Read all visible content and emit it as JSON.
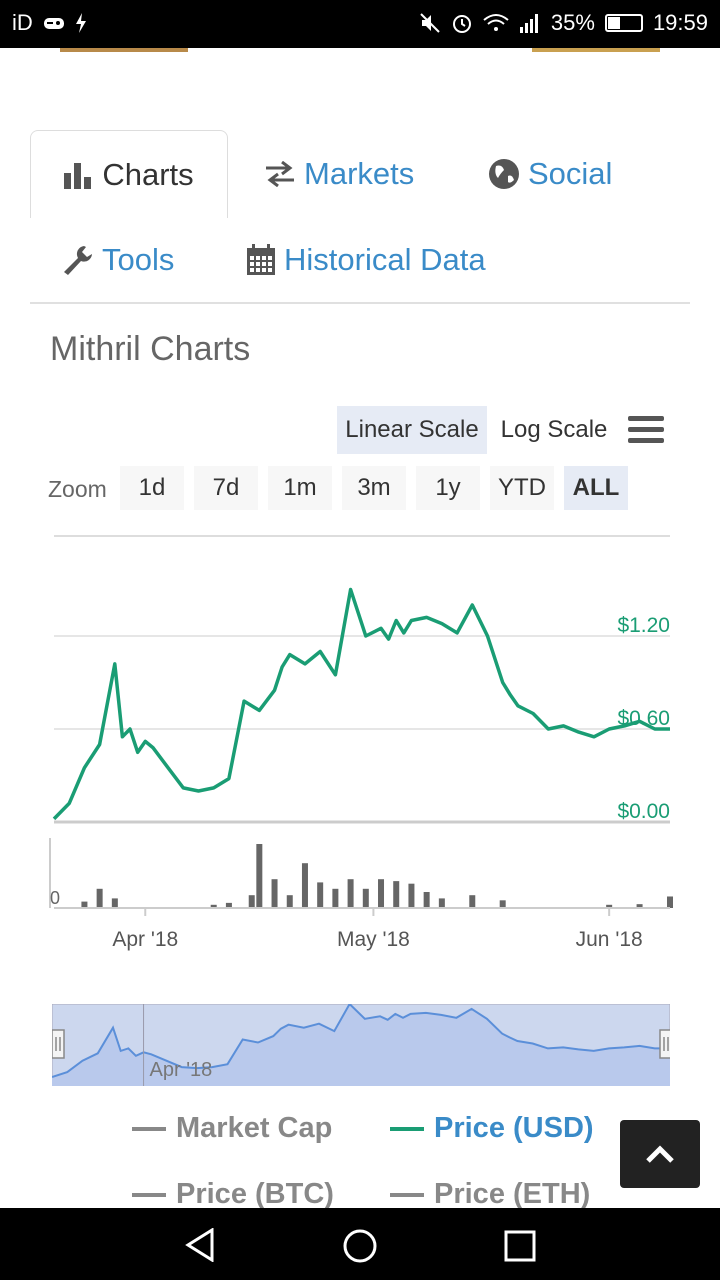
{
  "status": {
    "left_text": "iD",
    "battery": "35%",
    "time": "19:59"
  },
  "tabs": [
    {
      "label": "Charts",
      "icon": "bar-chart-icon",
      "active": true
    },
    {
      "label": "Markets",
      "icon": "exchange-icon",
      "active": false
    },
    {
      "label": "Social",
      "icon": "globe-icon",
      "active": false
    },
    {
      "label": "Tools",
      "icon": "wrench-icon",
      "active": false
    },
    {
      "label": "Historical Data",
      "icon": "calendar-icon",
      "active": false
    }
  ],
  "page_title": "Mithril Charts",
  "scale": {
    "linear": "Linear Scale",
    "log": "Log Scale",
    "selected": "Linear Scale"
  },
  "zoom": {
    "label": "Zoom",
    "options": [
      "1d",
      "7d",
      "1m",
      "3m",
      "1y",
      "YTD",
      "ALL"
    ],
    "selected": "ALL"
  },
  "chart_data": {
    "type": "line",
    "title": "",
    "series": [
      {
        "name": "Price (USD)",
        "color": "#1a9d74",
        "x": [
          "2018-03-20",
          "2018-03-22",
          "2018-03-24",
          "2018-03-26",
          "2018-03-28",
          "2018-03-29",
          "2018-03-30",
          "2018-03-31",
          "2018-04-01",
          "2018-04-02",
          "2018-04-04",
          "2018-04-06",
          "2018-04-08",
          "2018-04-10",
          "2018-04-12",
          "2018-04-14",
          "2018-04-16",
          "2018-04-18",
          "2018-04-19",
          "2018-04-20",
          "2018-04-22",
          "2018-04-24",
          "2018-04-26",
          "2018-04-28",
          "2018-04-30",
          "2018-05-02",
          "2018-05-03",
          "2018-05-04",
          "2018-05-05",
          "2018-05-06",
          "2018-05-08",
          "2018-05-10",
          "2018-05-12",
          "2018-05-14",
          "2018-05-16",
          "2018-05-18",
          "2018-05-19",
          "2018-05-20",
          "2018-05-22",
          "2018-05-24",
          "2018-05-26",
          "2018-05-28",
          "2018-05-30",
          "2018-06-01",
          "2018-06-03",
          "2018-06-05",
          "2018-06-07",
          "2018-06-09"
        ],
        "values": [
          0.02,
          0.12,
          0.35,
          0.5,
          1.02,
          0.55,
          0.6,
          0.45,
          0.52,
          0.48,
          0.35,
          0.22,
          0.2,
          0.22,
          0.28,
          0.78,
          0.72,
          0.85,
          1.0,
          1.08,
          1.02,
          1.1,
          0.95,
          1.5,
          1.2,
          1.25,
          1.18,
          1.3,
          1.22,
          1.3,
          1.32,
          1.28,
          1.22,
          1.4,
          1.2,
          0.9,
          0.82,
          0.75,
          0.7,
          0.6,
          0.62,
          0.58,
          0.55,
          0.6,
          0.62,
          0.65,
          0.6,
          0.6
        ]
      }
    ],
    "y_ticks": [
      "$0.00",
      "$0.60",
      "$1.20"
    ],
    "y_tick_values": [
      0,
      0.6,
      1.2
    ],
    "ylim": [
      0,
      1.5
    ],
    "x_ticks": [
      "Apr '18",
      "May '18",
      "Jun '18"
    ],
    "x_tick_values": [
      "2018-04-01",
      "2018-05-01",
      "2018-06-01"
    ],
    "xlim": [
      "2018-03-20",
      "2018-06-09"
    ],
    "volume": {
      "label": "0",
      "x": [
        "2018-03-24",
        "2018-03-26",
        "2018-03-28",
        "2018-04-10",
        "2018-04-12",
        "2018-04-15",
        "2018-04-16",
        "2018-04-18",
        "2018-04-20",
        "2018-04-22",
        "2018-04-24",
        "2018-04-26",
        "2018-04-28",
        "2018-04-30",
        "2018-05-02",
        "2018-05-04",
        "2018-05-06",
        "2018-05-08",
        "2018-05-10",
        "2018-05-14",
        "2018-05-18",
        "2018-06-01",
        "2018-06-05",
        "2018-06-09"
      ],
      "values": [
        10,
        30,
        15,
        5,
        8,
        20,
        100,
        45,
        20,
        70,
        40,
        30,
        45,
        30,
        45,
        42,
        38,
        25,
        15,
        20,
        12,
        5,
        6,
        18
      ]
    }
  },
  "navigator": {
    "tick_label": "Apr '18"
  },
  "legend": [
    {
      "label": "Market Cap",
      "active": false
    },
    {
      "label": "Price (USD)",
      "active": true
    },
    {
      "label": "Price (BTC)",
      "active": false
    },
    {
      "label": "Price (ETH)",
      "active": false
    }
  ]
}
